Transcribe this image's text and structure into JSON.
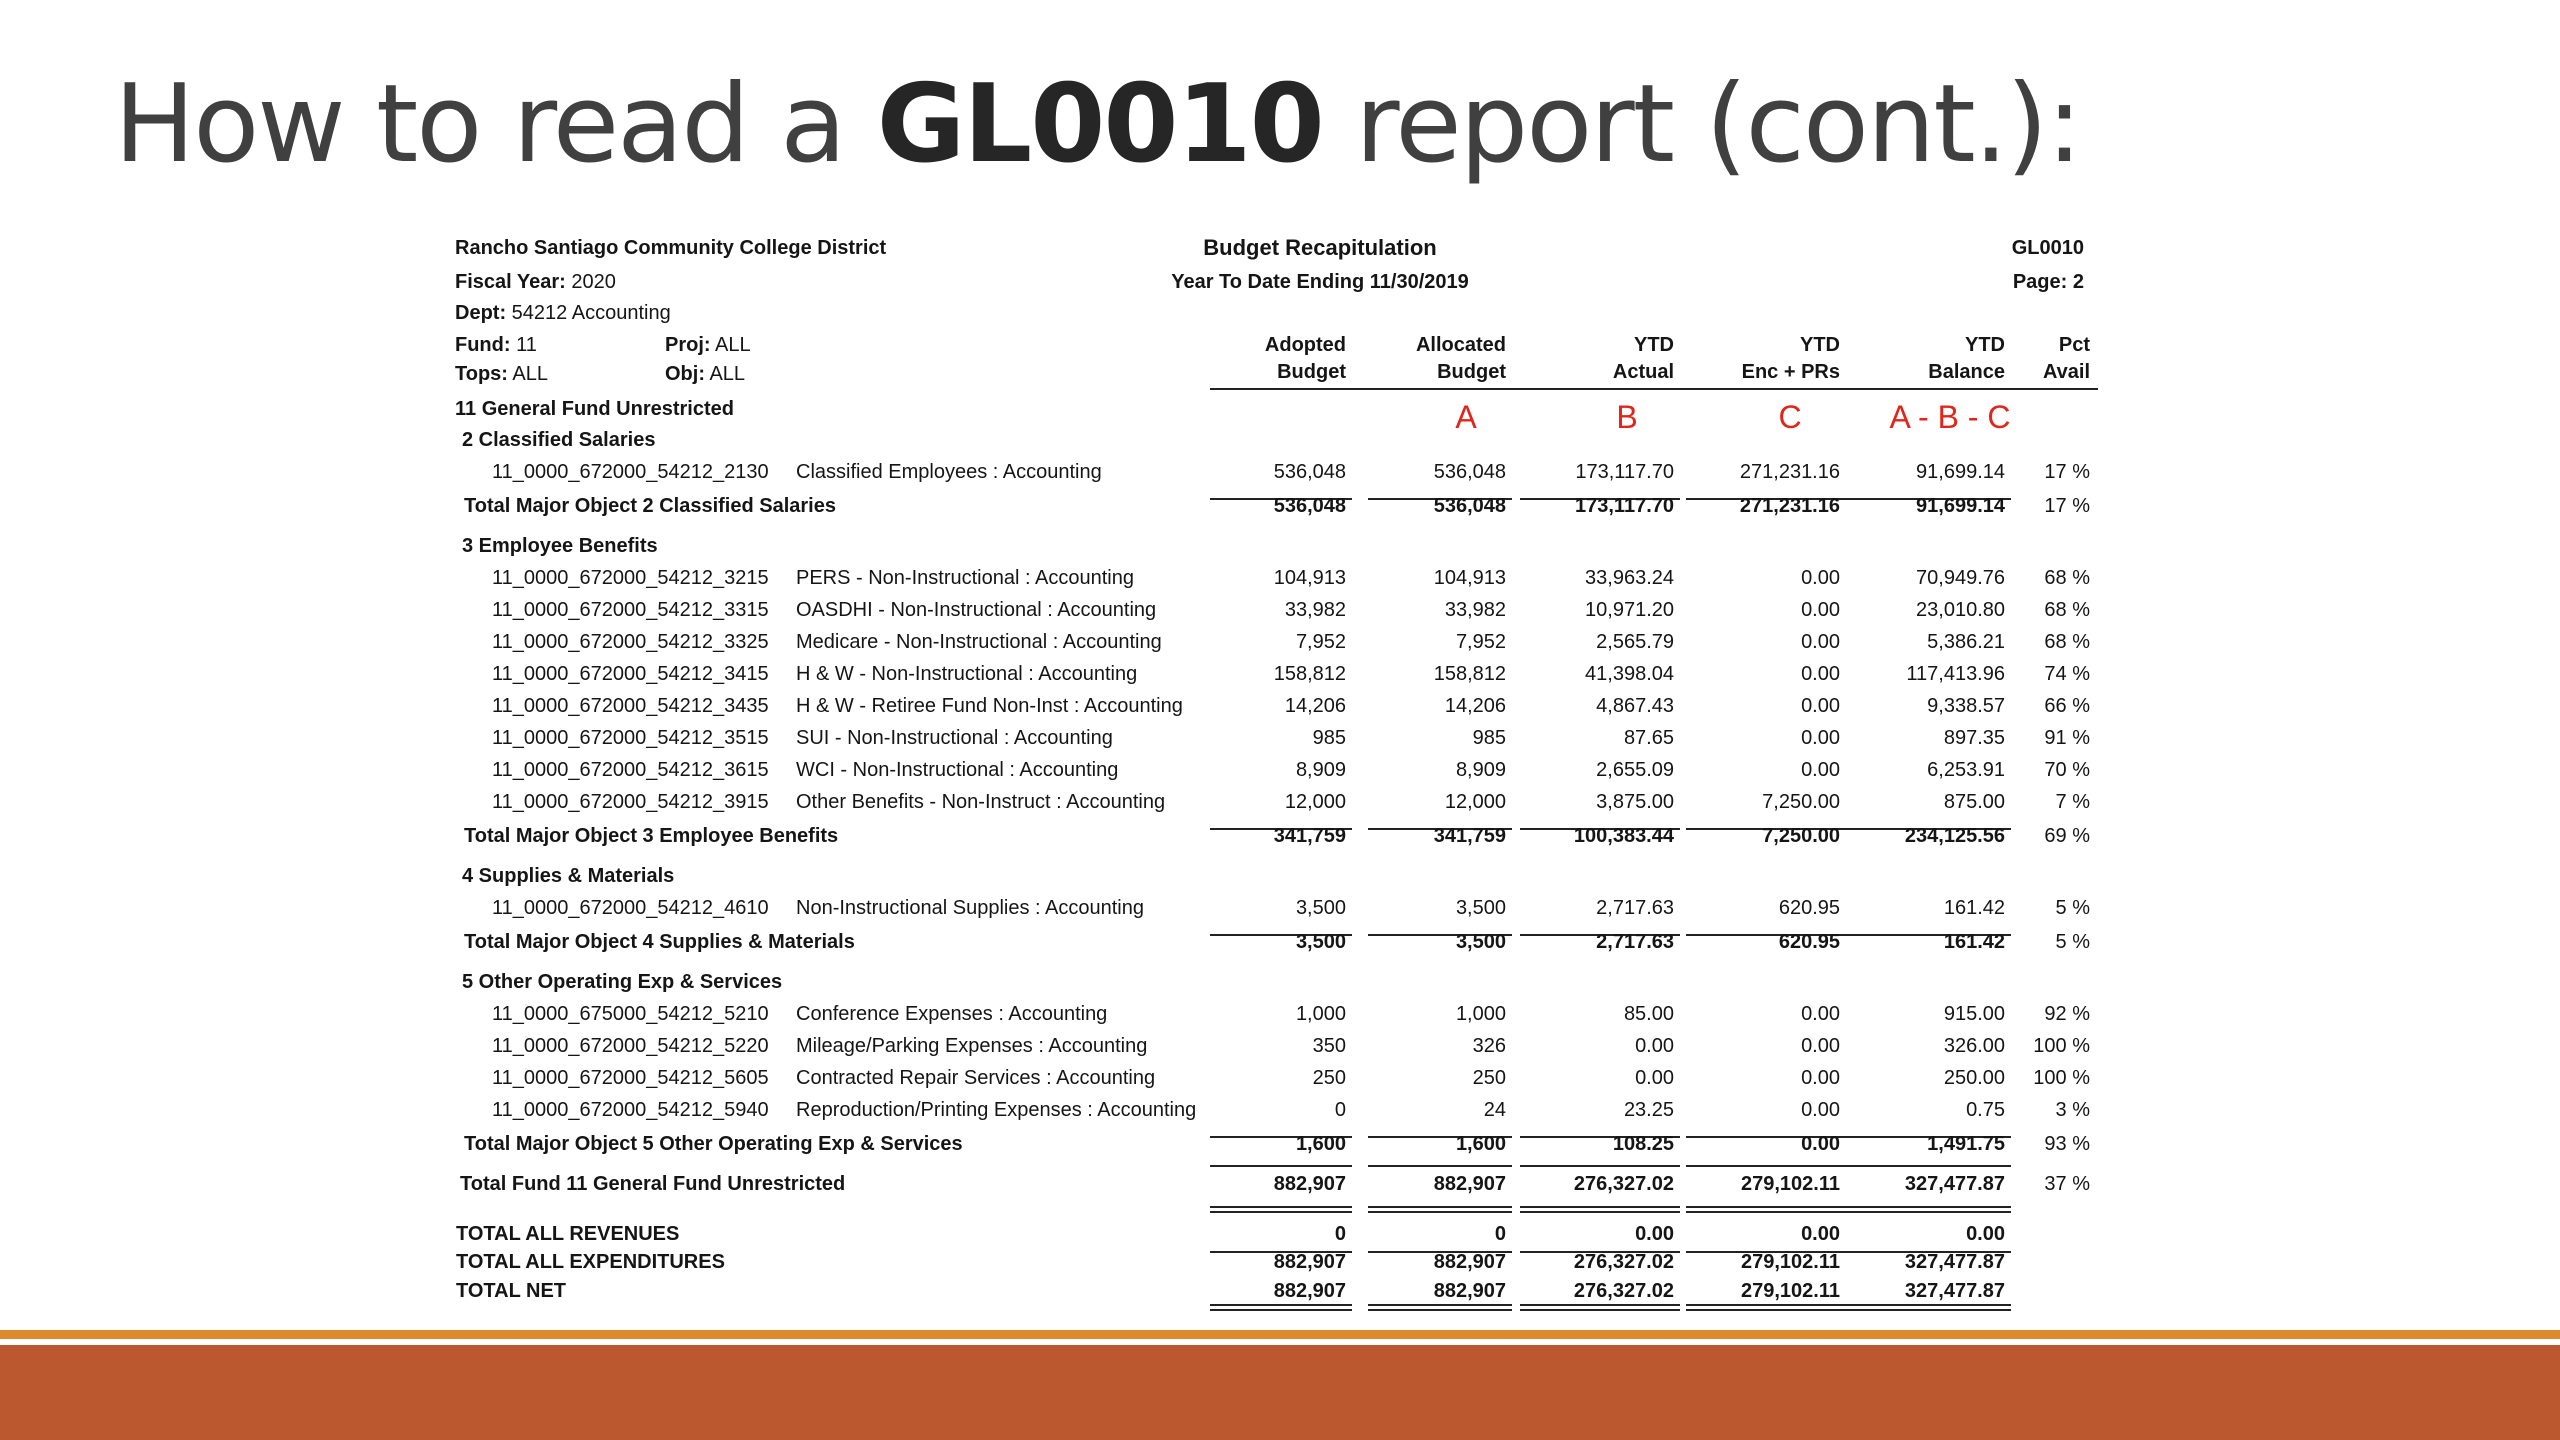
{
  "slide": {
    "title_pre": "How to read a ",
    "title_bold": "GL0010",
    "title_post": " report (cont.):"
  },
  "report": {
    "district": "Rancho Santiago Community College District",
    "report_title": "Budget Recapitulation",
    "report_code": "GL0010",
    "fiscal_year_label": "Fiscal Year:",
    "fiscal_year": "2020",
    "ytd_ending": "Year To Date Ending 11/30/2019",
    "page": "Page: 2",
    "dept_label": "Dept:",
    "dept": "54212 Accounting",
    "fund_label": "Fund:",
    "fund": "11",
    "proj_label": "Proj:",
    "proj": "ALL",
    "tops_label": "Tops:",
    "tops": "ALL",
    "obj_label": "Obj:",
    "obj": "ALL",
    "col_headers": [
      [
        "Adopted",
        "Budget"
      ],
      [
        "Allocated",
        "Budget"
      ],
      [
        "YTD",
        "Actual"
      ],
      [
        "YTD",
        "Enc + PRs"
      ],
      [
        "YTD",
        "Balance"
      ],
      [
        "Pct",
        "Avail"
      ]
    ],
    "fund_heading": "11 General Fund Unrestricted",
    "annotations": [
      "A",
      "B",
      "C",
      "A - B - C"
    ],
    "sections": [
      {
        "heading": "2 Classified Salaries",
        "rows": [
          {
            "acct": "11_0000_672000_54212_2130",
            "desc": "Classified Employees : Accounting",
            "vals": [
              "536,048",
              "536,048",
              "173,117.70",
              "271,231.16",
              "91,699.14",
              "17 %"
            ]
          }
        ],
        "total_label": "Total Major Object 2 Classified Salaries",
        "total_vals": [
          "536,048",
          "536,048",
          "173,117.70",
          "271,231.16",
          "91,699.14",
          "17 %"
        ]
      },
      {
        "heading": "3 Employee Benefits",
        "rows": [
          {
            "acct": "11_0000_672000_54212_3215",
            "desc": "PERS - Non-Instructional : Accounting",
            "vals": [
              "104,913",
              "104,913",
              "33,963.24",
              "0.00",
              "70,949.76",
              "68 %"
            ]
          },
          {
            "acct": "11_0000_672000_54212_3315",
            "desc": "OASDHI - Non-Instructional : Accounting",
            "vals": [
              "33,982",
              "33,982",
              "10,971.20",
              "0.00",
              "23,010.80",
              "68 %"
            ]
          },
          {
            "acct": "11_0000_672000_54212_3325",
            "desc": "Medicare - Non-Instructional : Accounting",
            "vals": [
              "7,952",
              "7,952",
              "2,565.79",
              "0.00",
              "5,386.21",
              "68 %"
            ]
          },
          {
            "acct": "11_0000_672000_54212_3415",
            "desc": "H & W - Non-Instructional : Accounting",
            "vals": [
              "158,812",
              "158,812",
              "41,398.04",
              "0.00",
              "117,413.96",
              "74 %"
            ]
          },
          {
            "acct": "11_0000_672000_54212_3435",
            "desc": "H & W - Retiree Fund Non-Inst : Accounting",
            "vals": [
              "14,206",
              "14,206",
              "4,867.43",
              "0.00",
              "9,338.57",
              "66 %"
            ]
          },
          {
            "acct": "11_0000_672000_54212_3515",
            "desc": "SUI - Non-Instructional : Accounting",
            "vals": [
              "985",
              "985",
              "87.65",
              "0.00",
              "897.35",
              "91 %"
            ]
          },
          {
            "acct": "11_0000_672000_54212_3615",
            "desc": "WCI - Non-Instructional : Accounting",
            "vals": [
              "8,909",
              "8,909",
              "2,655.09",
              "0.00",
              "6,253.91",
              "70 %"
            ]
          },
          {
            "acct": "11_0000_672000_54212_3915",
            "desc": "Other Benefits - Non-Instruct : Accounting",
            "vals": [
              "12,000",
              "12,000",
              "3,875.00",
              "7,250.00",
              "875.00",
              "7 %"
            ]
          }
        ],
        "total_label": "Total Major Object 3 Employee Benefits",
        "total_vals": [
          "341,759",
          "341,759",
          "100,383.44",
          "7,250.00",
          "234,125.56",
          "69 %"
        ]
      },
      {
        "heading": "4 Supplies & Materials",
        "rows": [
          {
            "acct": "11_0000_672000_54212_4610",
            "desc": "Non-Instructional Supplies : Accounting",
            "vals": [
              "3,500",
              "3,500",
              "2,717.63",
              "620.95",
              "161.42",
              "5 %"
            ]
          }
        ],
        "total_label": "Total Major Object 4 Supplies & Materials",
        "total_vals": [
          "3,500",
          "3,500",
          "2,717.63",
          "620.95",
          "161.42",
          "5 %"
        ]
      },
      {
        "heading": "5 Other Operating Exp & Services",
        "rows": [
          {
            "acct": "11_0000_675000_54212_5210",
            "desc": "Conference Expenses : Accounting",
            "vals": [
              "1,000",
              "1,000",
              "85.00",
              "0.00",
              "915.00",
              "92 %"
            ]
          },
          {
            "acct": "11_0000_672000_54212_5220",
            "desc": "Mileage/Parking Expenses : Accounting",
            "vals": [
              "350",
              "326",
              "0.00",
              "0.00",
              "326.00",
              "100 %"
            ]
          },
          {
            "acct": "11_0000_672000_54212_5605",
            "desc": "Contracted Repair Services : Accounting",
            "vals": [
              "250",
              "250",
              "0.00",
              "0.00",
              "250.00",
              "100 %"
            ]
          },
          {
            "acct": "11_0000_672000_54212_5940",
            "desc": "Reproduction/Printing Expenses : Accounting",
            "vals": [
              "0",
              "24",
              "23.25",
              "0.00",
              "0.75",
              "3 %"
            ]
          }
        ],
        "total_label": "Total Major Object 5 Other Operating Exp & Services",
        "total_vals": [
          "1,600",
          "1,600",
          "108.25",
          "0.00",
          "1,491.75",
          "93 %"
        ]
      }
    ],
    "fund_total_label": "Total Fund 11 General Fund Unrestricted",
    "fund_total_vals": [
      "882,907",
      "882,907",
      "276,327.02",
      "279,102.11",
      "327,477.87",
      "37 %"
    ],
    "grand_totals": [
      {
        "label": "TOTAL ALL REVENUES",
        "vals": [
          "0",
          "0",
          "0.00",
          "0.00",
          "0.00"
        ]
      },
      {
        "label": "TOTAL ALL EXPENDITURES",
        "vals": [
          "882,907",
          "882,907",
          "276,327.02",
          "279,102.11",
          "327,477.87"
        ]
      },
      {
        "label": "TOTAL NET",
        "vals": [
          "882,907",
          "882,907",
          "276,327.02",
          "279,102.11",
          "327,477.87"
        ]
      }
    ]
  }
}
